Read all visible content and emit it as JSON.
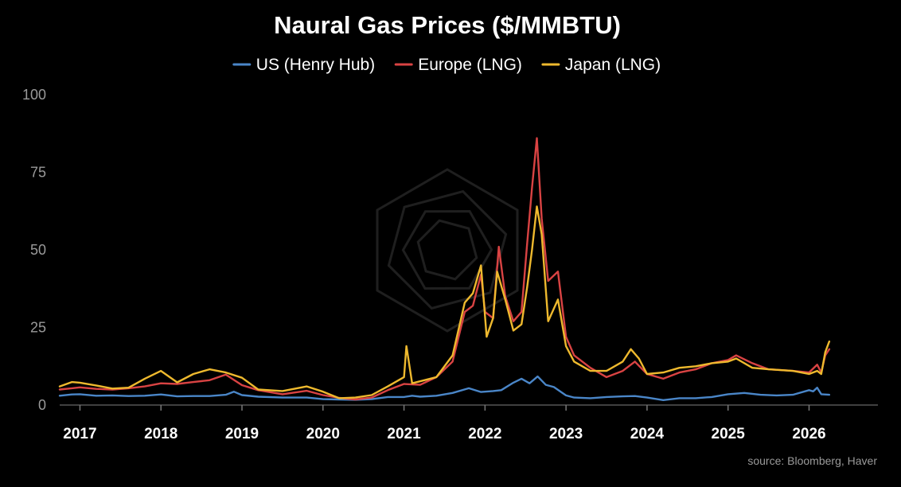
{
  "chart_data": {
    "type": "line",
    "title": "Naural Gas Prices ($/MMBTU)",
    "source": "source: Bloomberg, Haver",
    "xlabel": "",
    "ylabel": "",
    "xlim": [
      2016.75,
      2026.85
    ],
    "ylim": [
      0,
      100
    ],
    "yticks": [
      "0",
      "25",
      "50",
      "75",
      "100"
    ],
    "ytick_values": [
      0,
      25,
      50,
      75,
      100
    ],
    "xticks": [
      "2017",
      "2018",
      "2019",
      "2020",
      "2021",
      "2022",
      "2023",
      "2024",
      "2025",
      "2026"
    ],
    "xtick_values": [
      2017,
      2018,
      2019,
      2020,
      2021,
      2022,
      2023,
      2024,
      2025,
      2026
    ],
    "grid": false,
    "legend_position": "top-center",
    "series": [
      {
        "name": "US (Henry Hub)",
        "color": "#4a86c8",
        "points": [
          [
            2016.75,
            3.0
          ],
          [
            2016.9,
            3.4
          ],
          [
            2017.0,
            3.5
          ],
          [
            2017.2,
            3.0
          ],
          [
            2017.4,
            3.1
          ],
          [
            2017.6,
            2.9
          ],
          [
            2017.8,
            3.0
          ],
          [
            2018.0,
            3.4
          ],
          [
            2018.2,
            2.8
          ],
          [
            2018.4,
            2.9
          ],
          [
            2018.6,
            2.9
          ],
          [
            2018.8,
            3.3
          ],
          [
            2018.9,
            4.3
          ],
          [
            2019.0,
            3.2
          ],
          [
            2019.2,
            2.7
          ],
          [
            2019.5,
            2.4
          ],
          [
            2019.8,
            2.4
          ],
          [
            2020.0,
            1.9
          ],
          [
            2020.2,
            1.8
          ],
          [
            2020.4,
            1.7
          ],
          [
            2020.6,
            1.9
          ],
          [
            2020.8,
            2.6
          ],
          [
            2021.0,
            2.6
          ],
          [
            2021.1,
            3.0
          ],
          [
            2021.2,
            2.7
          ],
          [
            2021.4,
            3.0
          ],
          [
            2021.6,
            3.9
          ],
          [
            2021.8,
            5.4
          ],
          [
            2021.95,
            4.2
          ],
          [
            2022.1,
            4.5
          ],
          [
            2022.2,
            4.8
          ],
          [
            2022.35,
            7.2
          ],
          [
            2022.45,
            8.5
          ],
          [
            2022.55,
            7.0
          ],
          [
            2022.65,
            9.2
          ],
          [
            2022.75,
            6.5
          ],
          [
            2022.85,
            5.8
          ],
          [
            2022.95,
            4.0
          ],
          [
            2023.0,
            3.1
          ],
          [
            2023.1,
            2.4
          ],
          [
            2023.3,
            2.2
          ],
          [
            2023.5,
            2.6
          ],
          [
            2023.7,
            2.8
          ],
          [
            2023.85,
            2.9
          ],
          [
            2024.0,
            2.4
          ],
          [
            2024.2,
            1.6
          ],
          [
            2024.4,
            2.2
          ],
          [
            2024.6,
            2.2
          ],
          [
            2024.8,
            2.6
          ],
          [
            2025.0,
            3.5
          ],
          [
            2025.2,
            3.9
          ],
          [
            2025.4,
            3.3
          ],
          [
            2025.6,
            3.1
          ],
          [
            2025.8,
            3.3
          ],
          [
            2026.0,
            4.8
          ],
          [
            2026.05,
            4.4
          ],
          [
            2026.1,
            5.6
          ],
          [
            2026.15,
            3.5
          ],
          [
            2026.25,
            3.3
          ]
        ]
      },
      {
        "name": "Europe (LNG)",
        "color": "#d94343",
        "points": [
          [
            2016.75,
            5.0
          ],
          [
            2016.9,
            5.4
          ],
          [
            2017.0,
            5.7
          ],
          [
            2017.2,
            5.2
          ],
          [
            2017.4,
            5.0
          ],
          [
            2017.6,
            5.4
          ],
          [
            2017.8,
            6.0
          ],
          [
            2018.0,
            7.0
          ],
          [
            2018.2,
            6.8
          ],
          [
            2018.4,
            7.4
          ],
          [
            2018.6,
            8.0
          ],
          [
            2018.8,
            9.8
          ],
          [
            2019.0,
            6.4
          ],
          [
            2019.2,
            4.8
          ],
          [
            2019.5,
            3.5
          ],
          [
            2019.8,
            4.6
          ],
          [
            2020.0,
            3.2
          ],
          [
            2020.2,
            2.3
          ],
          [
            2020.4,
            1.8
          ],
          [
            2020.6,
            2.4
          ],
          [
            2020.8,
            4.8
          ],
          [
            2021.0,
            6.8
          ],
          [
            2021.2,
            6.5
          ],
          [
            2021.4,
            9.0
          ],
          [
            2021.6,
            14.0
          ],
          [
            2021.75,
            30.0
          ],
          [
            2021.85,
            32.0
          ],
          [
            2021.95,
            42.0
          ],
          [
            2022.0,
            30.0
          ],
          [
            2022.1,
            28.0
          ],
          [
            2022.17,
            51.0
          ],
          [
            2022.25,
            35.0
          ],
          [
            2022.35,
            27.0
          ],
          [
            2022.45,
            30.0
          ],
          [
            2022.52,
            52.0
          ],
          [
            2022.58,
            70.0
          ],
          [
            2022.64,
            86.0
          ],
          [
            2022.7,
            60.0
          ],
          [
            2022.78,
            40.0
          ],
          [
            2022.9,
            43.0
          ],
          [
            2023.0,
            22.0
          ],
          [
            2023.1,
            16.0
          ],
          [
            2023.3,
            12.0
          ],
          [
            2023.5,
            9.0
          ],
          [
            2023.7,
            11.0
          ],
          [
            2023.85,
            14.0
          ],
          [
            2024.0,
            10.0
          ],
          [
            2024.2,
            8.5
          ],
          [
            2024.4,
            10.5
          ],
          [
            2024.6,
            11.5
          ],
          [
            2024.8,
            13.5
          ],
          [
            2025.0,
            14.5
          ],
          [
            2025.1,
            16.0
          ],
          [
            2025.3,
            13.5
          ],
          [
            2025.5,
            11.5
          ],
          [
            2025.8,
            11.0
          ],
          [
            2026.0,
            10.5
          ],
          [
            2026.1,
            13.0
          ],
          [
            2026.15,
            10.5
          ],
          [
            2026.2,
            16.0
          ],
          [
            2026.25,
            18.0
          ]
        ]
      },
      {
        "name": "Japan (LNG)",
        "color": "#eeb92e",
        "points": [
          [
            2016.75,
            6.0
          ],
          [
            2016.9,
            7.4
          ],
          [
            2017.0,
            7.2
          ],
          [
            2017.2,
            6.3
          ],
          [
            2017.4,
            5.3
          ],
          [
            2017.6,
            5.6
          ],
          [
            2017.8,
            8.5
          ],
          [
            2018.0,
            11.0
          ],
          [
            2018.2,
            7.3
          ],
          [
            2018.4,
            10.0
          ],
          [
            2018.6,
            11.5
          ],
          [
            2018.8,
            10.5
          ],
          [
            2019.0,
            8.8
          ],
          [
            2019.2,
            5.0
          ],
          [
            2019.5,
            4.5
          ],
          [
            2019.8,
            6.0
          ],
          [
            2020.0,
            4.3
          ],
          [
            2020.2,
            2.2
          ],
          [
            2020.4,
            2.4
          ],
          [
            2020.6,
            3.2
          ],
          [
            2020.8,
            6.0
          ],
          [
            2021.0,
            9.0
          ],
          [
            2021.03,
            19.0
          ],
          [
            2021.1,
            7.0
          ],
          [
            2021.4,
            9.0
          ],
          [
            2021.6,
            16.0
          ],
          [
            2021.75,
            33.0
          ],
          [
            2021.85,
            36.0
          ],
          [
            2021.95,
            45.0
          ],
          [
            2022.02,
            22.0
          ],
          [
            2022.1,
            28.0
          ],
          [
            2022.15,
            43.0
          ],
          [
            2022.25,
            34.0
          ],
          [
            2022.35,
            24.0
          ],
          [
            2022.45,
            26.0
          ],
          [
            2022.52,
            38.0
          ],
          [
            2022.58,
            50.0
          ],
          [
            2022.64,
            64.0
          ],
          [
            2022.7,
            55.0
          ],
          [
            2022.78,
            27.0
          ],
          [
            2022.9,
            34.0
          ],
          [
            2023.0,
            19.0
          ],
          [
            2023.1,
            14.0
          ],
          [
            2023.3,
            11.0
          ],
          [
            2023.5,
            11.0
          ],
          [
            2023.7,
            14.0
          ],
          [
            2023.8,
            18.0
          ],
          [
            2023.9,
            15.0
          ],
          [
            2024.0,
            10.0
          ],
          [
            2024.2,
            10.5
          ],
          [
            2024.4,
            12.0
          ],
          [
            2024.6,
            12.5
          ],
          [
            2024.8,
            13.5
          ],
          [
            2025.0,
            14.0
          ],
          [
            2025.1,
            15.0
          ],
          [
            2025.3,
            12.0
          ],
          [
            2025.5,
            11.5
          ],
          [
            2025.8,
            11.0
          ],
          [
            2026.0,
            10.0
          ],
          [
            2026.1,
            11.0
          ],
          [
            2026.15,
            10.0
          ],
          [
            2026.2,
            17.0
          ],
          [
            2026.25,
            20.5
          ]
        ]
      }
    ]
  }
}
